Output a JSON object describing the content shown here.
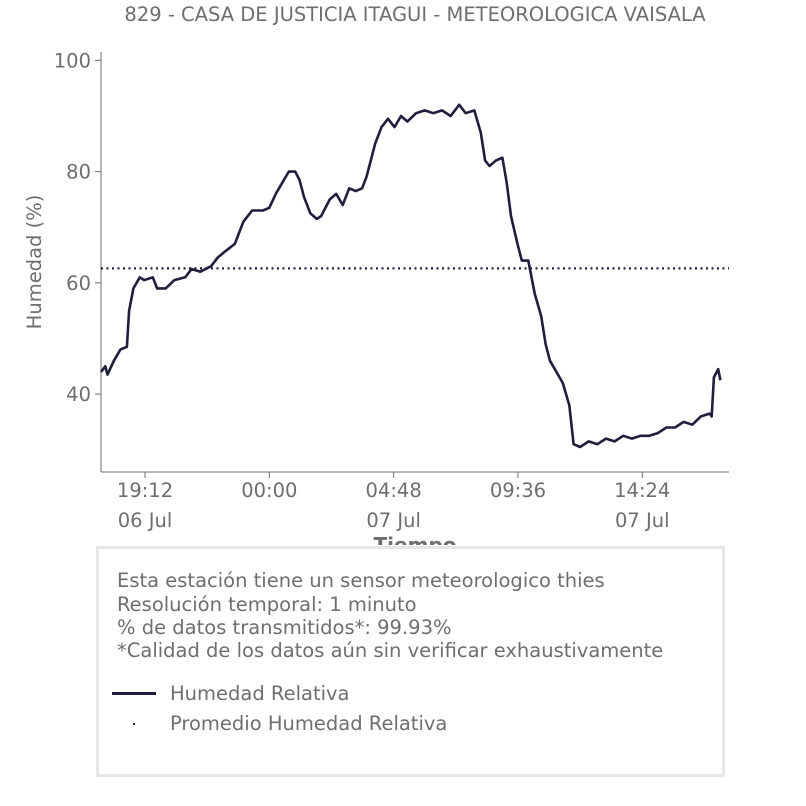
{
  "colors": {
    "series": "#1f1f3d",
    "text": "#6e6e6e",
    "box_border": "#e6e6e6"
  },
  "chart_data": {
    "type": "line",
    "title": "829 - CASA DE JUSTICIA ITAGUI - METEOROLOGICA VAISALA",
    "xlabel": "Tiempo",
    "ylabel": "Humedad (%)",
    "xlim": [
      "06 Jul 17:30",
      "07 Jul 17:45"
    ],
    "ylim": [
      26,
      101.5
    ],
    "x_ticks": [
      {
        "time": "19:12",
        "date": "06 Jul",
        "x": "06 Jul 19:12"
      },
      {
        "time": "00:00",
        "date": "",
        "x": "07 Jul 00:00"
      },
      {
        "time": "04:48",
        "date": "07 Jul",
        "x": "07 Jul 04:48"
      },
      {
        "time": "09:36",
        "date": "",
        "x": "07 Jul 09:36"
      },
      {
        "time": "14:24",
        "date": "07 Jul",
        "x": "07 Jul 14:24"
      }
    ],
    "y_ticks": [
      "40",
      "60",
      "80",
      "100"
    ],
    "grid": false,
    "series": [
      {
        "name": "Humedad Relativ",
        "style": "solid",
        "points": [
          [
            "06 Jul 17:30",
            44
          ],
          [
            "06 Jul 17:40",
            45
          ],
          [
            "06 Jul 17:45",
            43.5
          ],
          [
            "06 Jul 18:00",
            46
          ],
          [
            "06 Jul 18:15",
            48
          ],
          [
            "06 Jul 18:30",
            48.5
          ],
          [
            "06 Jul 18:35",
            55
          ],
          [
            "06 Jul 18:45",
            59
          ],
          [
            "06 Jul 19:00",
            61
          ],
          [
            "06 Jul 19:10",
            60.5
          ],
          [
            "06 Jul 19:30",
            61
          ],
          [
            "06 Jul 19:40",
            59
          ],
          [
            "06 Jul 20:00",
            59
          ],
          [
            "06 Jul 20:20",
            60.5
          ],
          [
            "06 Jul 20:45",
            61
          ],
          [
            "06 Jul 21:00",
            62.5
          ],
          [
            "06 Jul 21:20",
            62
          ],
          [
            "06 Jul 21:45",
            63
          ],
          [
            "06 Jul 22:00",
            64.5
          ],
          [
            "06 Jul 22:15",
            65.5
          ],
          [
            "06 Jul 22:40",
            67
          ],
          [
            "06 Jul 23:00",
            71
          ],
          [
            "06 Jul 23:20",
            73
          ],
          [
            "06 Jul 23:45",
            73
          ],
          [
            "07 Jul 00:00",
            73.5
          ],
          [
            "07 Jul 00:15",
            76
          ],
          [
            "07 Jul 00:30",
            78
          ],
          [
            "07 Jul 00:45",
            80
          ],
          [
            "07 Jul 01:00",
            80
          ],
          [
            "07 Jul 01:10",
            78.5
          ],
          [
            "07 Jul 01:20",
            75.5
          ],
          [
            "07 Jul 01:35",
            72.5
          ],
          [
            "07 Jul 01:50",
            71.5
          ],
          [
            "07 Jul 02:00",
            72
          ],
          [
            "07 Jul 02:20",
            75
          ],
          [
            "07 Jul 02:35",
            76
          ],
          [
            "07 Jul 02:50",
            74
          ],
          [
            "07 Jul 03:05",
            77
          ],
          [
            "07 Jul 03:20",
            76.5
          ],
          [
            "07 Jul 03:35",
            77
          ],
          [
            "07 Jul 03:45",
            79
          ],
          [
            "07 Jul 03:55",
            82
          ],
          [
            "07 Jul 04:05",
            85
          ],
          [
            "07 Jul 04:20",
            88
          ],
          [
            "07 Jul 04:35",
            89.5
          ],
          [
            "07 Jul 04:50",
            88
          ],
          [
            "07 Jul 05:05",
            90
          ],
          [
            "07 Jul 05:20",
            89
          ],
          [
            "07 Jul 05:40",
            90.5
          ],
          [
            "07 Jul 06:00",
            91
          ],
          [
            "07 Jul 06:20",
            90.5
          ],
          [
            "07 Jul 06:40",
            91
          ],
          [
            "07 Jul 07:00",
            90
          ],
          [
            "07 Jul 07:20",
            92
          ],
          [
            "07 Jul 07:35",
            90.5
          ],
          [
            "07 Jul 07:55",
            91
          ],
          [
            "07 Jul 08:10",
            87
          ],
          [
            "07 Jul 08:20",
            82
          ],
          [
            "07 Jul 08:30",
            81
          ],
          [
            "07 Jul 08:45",
            82
          ],
          [
            "07 Jul 09:00",
            82.5
          ],
          [
            "07 Jul 09:10",
            78
          ],
          [
            "07 Jul 09:20",
            72
          ],
          [
            "07 Jul 09:35",
            67
          ],
          [
            "07 Jul 09:45",
            64
          ],
          [
            "07 Jul 10:00",
            64
          ],
          [
            "07 Jul 10:15",
            58
          ],
          [
            "07 Jul 10:30",
            54
          ],
          [
            "07 Jul 10:40",
            49
          ],
          [
            "07 Jul 10:50",
            46
          ],
          [
            "07 Jul 11:05",
            44
          ],
          [
            "07 Jul 11:20",
            42
          ],
          [
            "07 Jul 11:35",
            38
          ],
          [
            "07 Jul 11:45",
            31
          ],
          [
            "07 Jul 12:00",
            30.5
          ],
          [
            "07 Jul 12:20",
            31.5
          ],
          [
            "07 Jul 12:40",
            31
          ],
          [
            "07 Jul 13:00",
            32
          ],
          [
            "07 Jul 13:20",
            31.5
          ],
          [
            "07 Jul 13:40",
            32.5
          ],
          [
            "07 Jul 14:00",
            32
          ],
          [
            "07 Jul 14:20",
            32.5
          ],
          [
            "07 Jul 14:40",
            32.5
          ],
          [
            "07 Jul 15:00",
            33
          ],
          [
            "07 Jul 15:20",
            34
          ],
          [
            "07 Jul 15:40",
            34
          ],
          [
            "07 Jul 16:00",
            35
          ],
          [
            "07 Jul 16:20",
            34.5
          ],
          [
            "07 Jul 16:40",
            36
          ],
          [
            "07 Jul 17:00",
            36.5
          ],
          [
            "07 Jul 17:05",
            36
          ],
          [
            "07 Jul 17:10",
            43
          ],
          [
            "07 Jul 17:20",
            44.5
          ],
          [
            "07 Jul 17:25",
            42.5
          ]
        ]
      },
      {
        "name": "Promedio Humedad Relativa",
        "style": "dotted",
        "value": 62.6
      }
    ]
  },
  "info_box": {
    "notes": [
      "Esta estación tiene un sensor meteorologico thies",
      "Resolución temporal: 1 minuto",
      "% de datos transmitidos*: 99.93%",
      "*Calidad de los datos aún sin verificar exhaustivamente"
    ],
    "legend": [
      {
        "label": "Humedad Relativa",
        "swatch": "solid"
      },
      {
        "label": "Promedio Humedad Relativa",
        "swatch": "dotted"
      }
    ]
  }
}
